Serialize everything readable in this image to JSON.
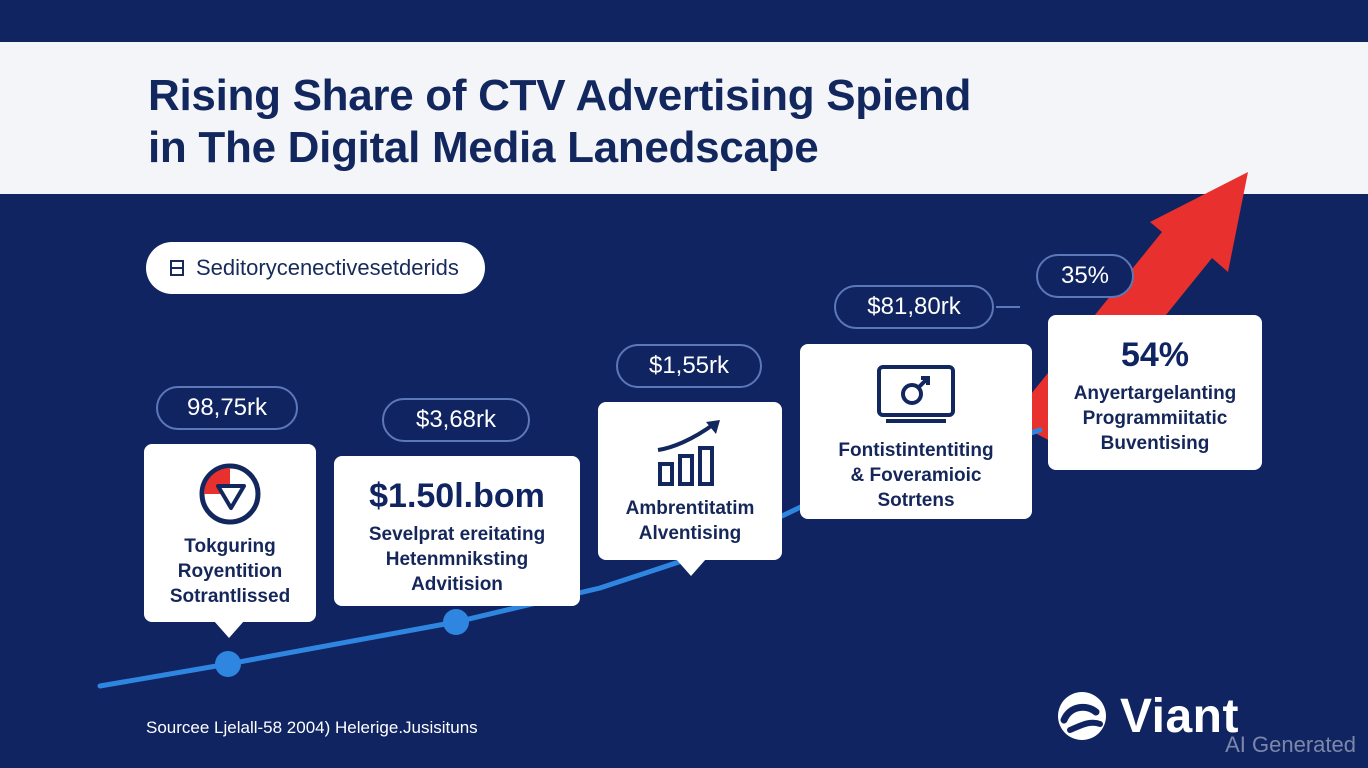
{
  "title": {
    "line1": "Rising Share of CTV Advertising Spiend",
    "line2": "in The Digital Media Lanedscape"
  },
  "chip": {
    "label": "Seditorycenectivesetderids",
    "icon": "list-icon"
  },
  "pills": [
    "98,75rk",
    "$3,68rk",
    "$1,55rk",
    "$81,80rk",
    "35%"
  ],
  "cards": [
    {
      "icon": "pie-chart-icon",
      "lines": [
        "Tokguring",
        "Royentition",
        "Sotrantlissed"
      ]
    },
    {
      "value": "$1.50l.bom",
      "lines": [
        "Sevelprat ereitating",
        "Hetenmniksting",
        "Advitision"
      ]
    },
    {
      "icon": "bar-chart-icon",
      "lines": [
        "Ambrentitatim",
        "Alventising"
      ]
    },
    {
      "icon": "tv-icon",
      "lines": [
        "Fontistintentiting",
        "& Foveramioic",
        "Sotrtens"
      ]
    },
    {
      "value": "54%",
      "lines": [
        "Anyertargelanting",
        "Programmiitatic",
        "Buventising"
      ]
    }
  ],
  "source": "Sourcee Ljelall-58 2004) Helerige.Jusisituns",
  "logo": {
    "text": "Viant",
    "icon": "viant-logo-icon"
  },
  "watermark": "AI Generated",
  "colors": {
    "background": "#0f2461",
    "title_band": "#f4f5f8",
    "trend_line": "#2f86e0",
    "arrow": "#e8312e",
    "card": "#ffffff"
  }
}
